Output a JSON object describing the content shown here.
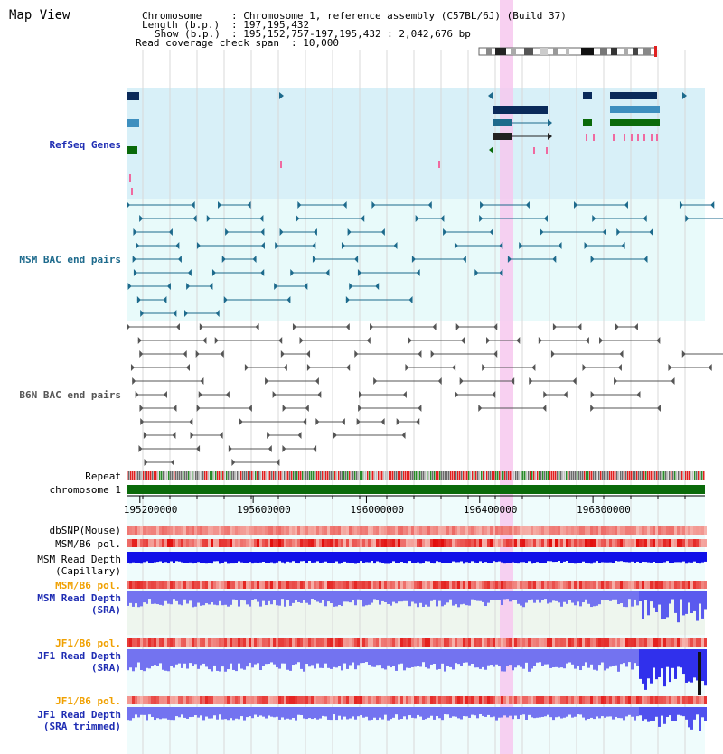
{
  "view_title": "Map View",
  "info": {
    "chromosome_key": "Chromosome",
    "chromosome_value": ": Chromosome 1, reference assembly (C57BL/6J) (Build 37)",
    "length_key": "Length (b.p.)",
    "length_value": ": 197,195,432",
    "show_key": "Show (b.p.)",
    "show_value": ": 195,152,757-197,195,432 : 2,042,676 bp",
    "coverage_key": "Read coverage check span",
    "coverage_value": ": 10,000"
  },
  "tracks": {
    "refseq": {
      "label": "RefSeq Genes",
      "color": "#1f2db3"
    },
    "msm_bac": {
      "label": "MSM BAC end pairs",
      "color": "#1d6a8c"
    },
    "b6n_bac": {
      "label": "B6N BAC end pairs",
      "color": "#555555"
    },
    "repeat": {
      "label": "Repeat"
    },
    "chromosome": {
      "label": "chromosome 1"
    },
    "dbsnp": {
      "label": "dbSNP(Mouse)"
    },
    "msm_b6_pol_1": {
      "label": "MSM/B6 pol."
    },
    "msm_depth_cap_1": {
      "label": "MSM Read Depth"
    },
    "msm_depth_cap_2": {
      "label": "(Capillary)"
    },
    "msm_b6_pol_2": {
      "label": "MSM/B6 pol.",
      "color": "#f0a000"
    },
    "msm_depth_sra_1": {
      "label": "MSM Read Depth",
      "color": "#1f2db3"
    },
    "msm_depth_sra_2": {
      "label": "(SRA)",
      "color": "#1f2db3"
    },
    "jf1_b6_pol_1": {
      "label": "JF1/B6 pol.",
      "color": "#f0a000"
    },
    "jf1_depth_sra_1": {
      "label": "JF1 Read Depth",
      "color": "#1f2db3"
    },
    "jf1_depth_sra_2": {
      "label": "(SRA)",
      "color": "#1f2db3"
    },
    "jf1_b6_pol_2": {
      "label": "JF1/B6 pol.",
      "color": "#f0a000"
    },
    "jf1_depth_trim_1": {
      "label": "JF1 Read Depth",
      "color": "#1f2db3"
    },
    "jf1_depth_trim_2": {
      "label": "(SRA trimmed)",
      "color": "#1f2db3"
    }
  },
  "axis": {
    "ticks": [
      {
        "value": 195200000,
        "label": "195200000"
      },
      {
        "value": 195600000,
        "label": "195600000"
      },
      {
        "value": 196000000,
        "label": "196000000"
      },
      {
        "value": 196400000,
        "label": "196400000"
      },
      {
        "value": 196800000,
        "label": "196800000"
      }
    ],
    "start": 195152757,
    "end": 197195432
  },
  "highlight": {
    "start": 196470000,
    "end": 196515000,
    "color": "#f7c8ee"
  },
  "colors": {
    "refseq_bg": "#d8f0f8",
    "msm_bg": "#e8fafa",
    "depth_bg": "#eef6ee",
    "pol_light": "#f6b3ad",
    "pol_dark": "#e01010",
    "depth_blue": "#1010e8",
    "depth_light_blue": "#7373f0",
    "chrom_green": "#0a6a0a"
  }
}
